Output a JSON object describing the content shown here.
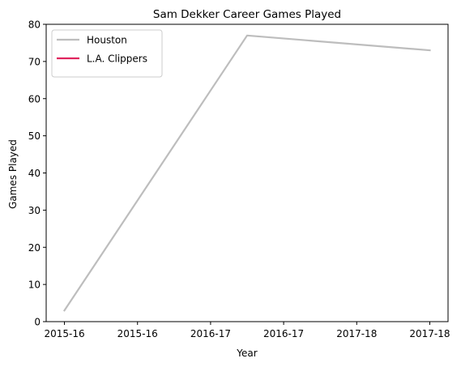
{
  "chart_data": {
    "type": "line",
    "title": "Sam Dekker Career Games Played",
    "xlabel": "Year",
    "ylabel": "Games Played",
    "x_ticks": [
      {
        "pos": 0.0,
        "label": "2015-16"
      },
      {
        "pos": 1.0,
        "label": "2015-16"
      },
      {
        "pos": 2.0,
        "label": "2016-17"
      },
      {
        "pos": 3.0,
        "label": "2016-17"
      },
      {
        "pos": 4.0,
        "label": "2017-18"
      },
      {
        "pos": 5.0,
        "label": "2017-18"
      }
    ],
    "xlim": [
      -0.25,
      5.25
    ],
    "ylim": [
      0,
      80
    ],
    "y_ticks": [
      0,
      10,
      20,
      30,
      40,
      50,
      60,
      70,
      80
    ],
    "grid": false,
    "legend_position": "top-left",
    "series": [
      {
        "name": "Houston",
        "color": "#bdbdbd",
        "points": [
          {
            "x": 0.0,
            "y": 3
          },
          {
            "x": 2.5,
            "y": 77
          },
          {
            "x": 5.0,
            "y": 73
          }
        ]
      },
      {
        "name": "L.A. Clippers",
        "color": "#e0245e",
        "points": []
      }
    ]
  }
}
